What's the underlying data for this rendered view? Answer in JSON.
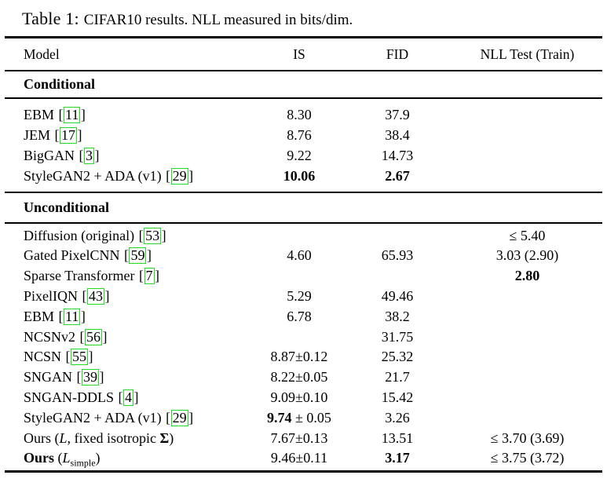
{
  "colors": {
    "background": "#ffffff",
    "text": "#000000",
    "rule": "#000000",
    "cite_box": "#22dd22"
  },
  "caption": {
    "label": "Table 1:",
    "text": "CIFAR10 results. NLL measured in bits/dim."
  },
  "header": {
    "model": "Model",
    "is": "IS",
    "fid": "FID",
    "nll": "NLL Test (Train)"
  },
  "cite_brackets": {
    "open": "[",
    "close": "]"
  },
  "conditional": {
    "title": "Conditional",
    "rows": [
      {
        "model": "EBM",
        "cite": "11",
        "is": "8.30",
        "fid": "37.9",
        "nll": ""
      },
      {
        "model": "JEM",
        "cite": "17",
        "is": "8.76",
        "fid": "38.4",
        "nll": ""
      },
      {
        "model": "BigGAN",
        "cite": "3",
        "is": "9.22",
        "fid": "14.73",
        "nll": ""
      },
      {
        "model": "StyleGAN2 + ADA (v1)",
        "cite": "29",
        "is": "10.06",
        "fid": "2.67",
        "nll": ""
      }
    ]
  },
  "unconditional": {
    "title": "Unconditional",
    "rows": [
      {
        "model": "Diffusion (original)",
        "cite": "53",
        "is": "",
        "fid": "",
        "nll": "≤ 5.40"
      },
      {
        "model": "Gated PixelCNN",
        "cite": "59",
        "is": "4.60",
        "fid": "65.93",
        "nll": "3.03 (2.90)"
      },
      {
        "model": "Sparse Transformer",
        "cite": "7",
        "is": "",
        "fid": "",
        "nll": "2.80"
      },
      {
        "model": "PixelIQN",
        "cite": "43",
        "is": "5.29",
        "fid": "49.46",
        "nll": ""
      },
      {
        "model": "EBM",
        "cite": "11",
        "is": "6.78",
        "fid": "38.2",
        "nll": ""
      },
      {
        "model": "NCSNv2",
        "cite": "56",
        "is": "",
        "fid": "31.75",
        "nll": ""
      },
      {
        "model": "NCSN",
        "cite": "55",
        "is": "8.87±0.12",
        "fid": "25.32",
        "nll": ""
      },
      {
        "model": "SNGAN",
        "cite": "39",
        "is": "8.22±0.05",
        "fid": "21.7",
        "nll": ""
      },
      {
        "model": "SNGAN-DDLS",
        "cite": "4",
        "is": "9.09±0.10",
        "fid": "15.42",
        "nll": ""
      },
      {
        "model": "StyleGAN2 + ADA (v1)",
        "cite": "29",
        "is_main": "9.74",
        "is_tail": " ± 0.05",
        "fid": "3.26",
        "nll": ""
      },
      {
        "model_parts": {
          "pre": "Ours (",
          "l": "L",
          "mid": ", fixed isotropic ",
          "sigma": "Σ",
          "post": ")"
        },
        "is": "7.67±0.13",
        "fid": "13.51",
        "nll": "≤ 3.70 (3.69)"
      },
      {
        "model_parts": {
          "ours": "Ours",
          "pre": " (",
          "l": "L",
          "sub": "simple",
          "post": ")"
        },
        "is": "9.46±0.11",
        "fid": "3.17",
        "nll": "≤ 3.75 (3.72)"
      }
    ]
  }
}
